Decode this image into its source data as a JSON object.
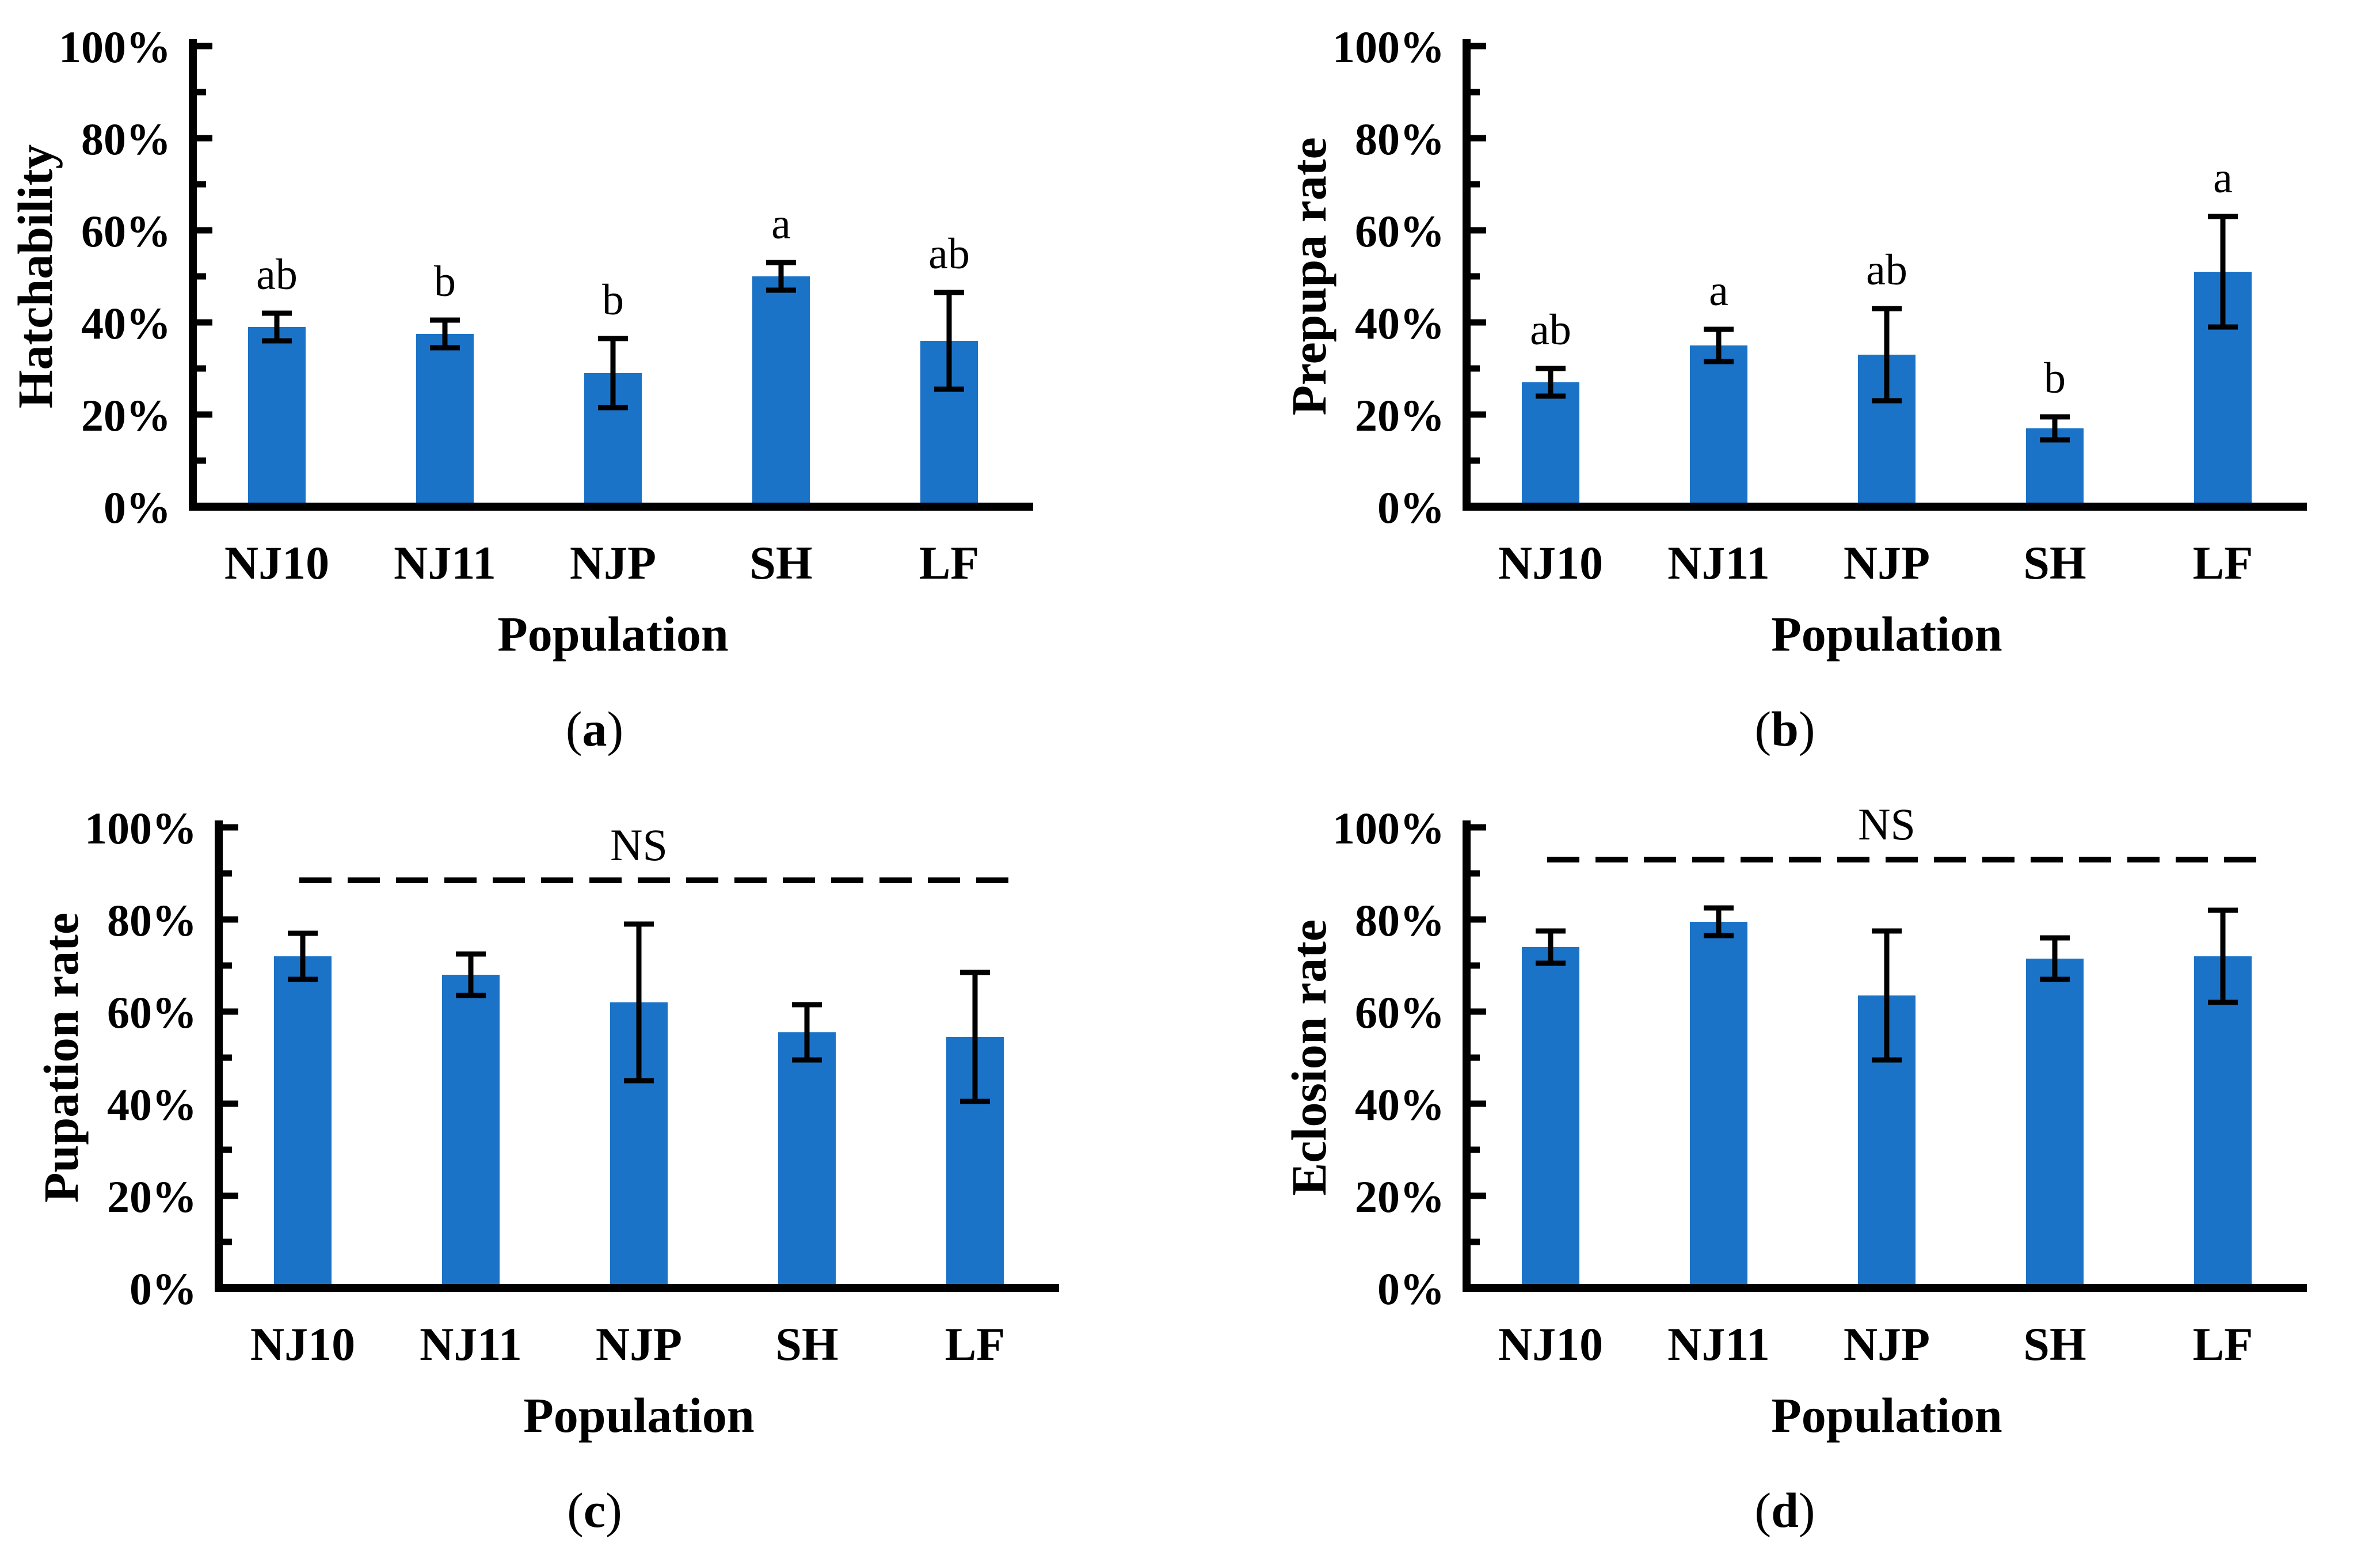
{
  "figure": {
    "background": "#ffffff",
    "bar_color": "#1B73C8",
    "axis_color": "#000000",
    "text_color": "#000000",
    "error_bar_color": "#000000"
  },
  "chart_data": [
    {
      "panel": "a",
      "type": "bar",
      "ylabel": "Hatchability",
      "xlabel": "Population",
      "panel_label": {
        "open": "(",
        "letter": "a",
        "close": ")"
      },
      "categories": [
        "NJ10",
        "NJ11",
        "NJP",
        "SH",
        "LF"
      ],
      "values": [
        39,
        37.5,
        29,
        50,
        36
      ],
      "errors": [
        3,
        3,
        7.5,
        3,
        10.5
      ],
      "sig_letters": [
        "ab",
        "b",
        "b",
        "a",
        "ab"
      ],
      "ns_line": null,
      "ylim": [
        0,
        100
      ],
      "yticks": [
        0,
        20,
        40,
        60,
        80,
        100
      ],
      "ytick_labels": [
        "0%",
        "20%",
        "40%",
        "60%",
        "80%",
        "100%"
      ],
      "minor_tick_step": 10,
      "grid": false,
      "layout": {
        "axis_x": 335
      }
    },
    {
      "panel": "b",
      "type": "bar",
      "ylabel": "Prepupa rate",
      "xlabel": "Population",
      "panel_label": {
        "open": "(",
        "letter": "b",
        "close": ")"
      },
      "categories": [
        "NJ10",
        "NJ11",
        "NJP",
        "SH",
        "LF"
      ],
      "values": [
        27,
        35,
        33,
        17,
        51
      ],
      "errors": [
        3,
        3.5,
        10,
        2.5,
        12
      ],
      "sig_letters": [
        "ab",
        "a",
        "ab",
        "b",
        "a"
      ],
      "ns_line": null,
      "ylim": [
        0,
        100
      ],
      "yticks": [
        0,
        20,
        40,
        60,
        80,
        100
      ],
      "ytick_labels": [
        "0%",
        "20%",
        "40%",
        "60%",
        "80%",
        "100%"
      ],
      "minor_tick_step": 10,
      "grid": false,
      "layout": {
        "axis_x": 480
      }
    },
    {
      "panel": "c",
      "type": "bar",
      "ylabel": "Pupation rate",
      "xlabel": "Population",
      "panel_label": {
        "open": "(",
        "letter": "c",
        "close": ")"
      },
      "categories": [
        "NJ10",
        "NJ11",
        "NJP",
        "SH",
        "LF"
      ],
      "values": [
        72,
        68,
        62,
        55.5,
        54.5
      ],
      "errors": [
        5,
        4.5,
        17,
        6,
        14
      ],
      "sig_letters": [
        null,
        null,
        null,
        null,
        null
      ],
      "ns_line": {
        "label": "NS",
        "value": 88.5
      },
      "ylim": [
        0,
        100
      ],
      "yticks": [
        0,
        20,
        40,
        60,
        80,
        100
      ],
      "ytick_labels": [
        "0%",
        "20%",
        "40%",
        "60%",
        "80%",
        "100%"
      ],
      "minor_tick_step": 10,
      "grid": false,
      "layout": {
        "axis_x": 380
      }
    },
    {
      "panel": "d",
      "type": "bar",
      "ylabel": "Eclosion rate",
      "xlabel": "Population",
      "panel_label": {
        "open": "(",
        "letter": "d",
        "close": ")"
      },
      "categories": [
        "NJ10",
        "NJ11",
        "NJP",
        "SH",
        "LF"
      ],
      "values": [
        74,
        79.5,
        63.5,
        71.5,
        72
      ],
      "errors": [
        3.5,
        3,
        14,
        4.5,
        10
      ],
      "sig_letters": [
        null,
        null,
        null,
        null,
        null
      ],
      "ns_line": {
        "label": "NS",
        "value": 93
      },
      "ylim": [
        0,
        100
      ],
      "yticks": [
        0,
        20,
        40,
        60,
        80,
        100
      ],
      "ytick_labels": [
        "0%",
        "20%",
        "40%",
        "60%",
        "80%",
        "100%"
      ],
      "minor_tick_step": 10,
      "grid": false,
      "layout": {
        "axis_x": 480
      }
    }
  ]
}
